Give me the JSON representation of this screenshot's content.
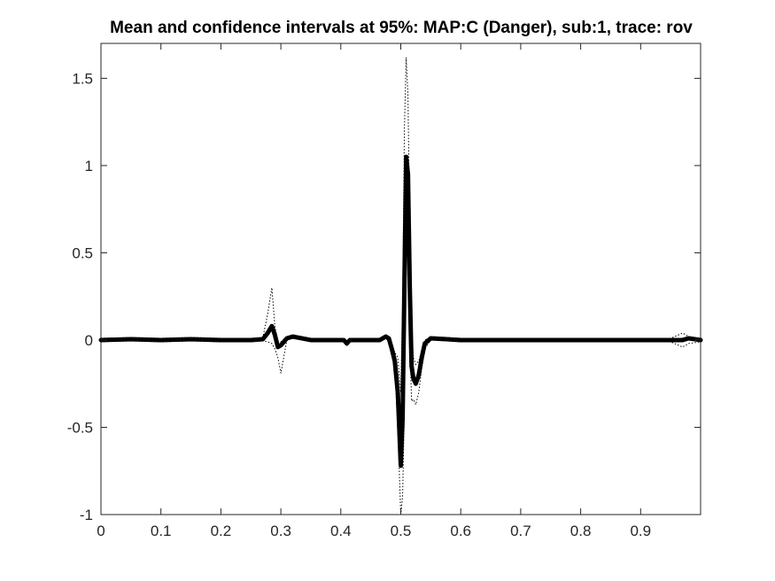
{
  "chart_data": {
    "type": "line",
    "title": "Mean and confidence intervals at 95%: MAP:C (Danger), sub:1, trace: rov",
    "xlabel": "",
    "ylabel": "",
    "xlim": [
      0,
      1
    ],
    "ylim": [
      -1,
      1.7
    ],
    "x_ticks": [
      0,
      0.1,
      0.2,
      0.3,
      0.4,
      0.5,
      0.6,
      0.7,
      0.8,
      0.9
    ],
    "x_tick_labels": [
      "0",
      "0.1",
      "0.2",
      "0.3",
      "0.4",
      "0.5",
      "0.6",
      "0.7",
      "0.8",
      "0.9"
    ],
    "y_ticks": [
      -1,
      -0.5,
      0,
      0.5,
      1,
      1.5
    ],
    "y_tick_labels": [
      "-1",
      "-0.5",
      "0",
      "0.5",
      "1",
      "1.5"
    ],
    "grid": false,
    "legend": "none",
    "colors": {
      "mean": "#000000",
      "ci": "#000000",
      "axes": "#262626"
    },
    "series": [
      {
        "x": [
          0,
          0.05,
          0.1,
          0.15,
          0.2,
          0.25,
          0.27,
          0.278,
          0.285,
          0.29,
          0.295,
          0.3,
          0.31,
          0.32,
          0.35,
          0.38,
          0.405,
          0.41,
          0.415,
          0.44,
          0.465,
          0.475,
          0.48,
          0.485,
          0.49,
          0.495,
          0.5,
          0.503,
          0.506,
          0.509,
          0.512,
          0.515,
          0.518,
          0.521,
          0.525,
          0.53,
          0.535,
          0.54,
          0.55,
          0.6,
          0.7,
          0.8,
          0.9,
          0.95,
          0.97,
          0.98,
          1.0
        ],
        "values": [
          0,
          0.005,
          0,
          0.005,
          0,
          0,
          0.005,
          0.04,
          0.08,
          0.03,
          -0.04,
          -0.03,
          0.01,
          0.02,
          0,
          0,
          0,
          -0.02,
          0,
          0,
          0,
          0.02,
          0.01,
          -0.05,
          -0.12,
          -0.3,
          -0.72,
          -0.45,
          0.3,
          1.05,
          0.95,
          0.3,
          -0.15,
          -0.22,
          -0.25,
          -0.2,
          -0.1,
          -0.02,
          0.01,
          0,
          0,
          0,
          0,
          0,
          0,
          0.01,
          0
        ]
      },
      {
        "x": [
          0,
          0.05,
          0.1,
          0.15,
          0.2,
          0.25,
          0.27,
          0.278,
          0.285,
          0.29,
          0.295,
          0.3,
          0.31,
          0.32,
          0.35,
          0.38,
          0.405,
          0.41,
          0.415,
          0.44,
          0.465,
          0.475,
          0.48,
          0.485,
          0.49,
          0.495,
          0.5,
          0.503,
          0.506,
          0.509,
          0.512,
          0.515,
          0.518,
          0.521,
          0.525,
          0.53,
          0.535,
          0.54,
          0.55,
          0.6,
          0.7,
          0.8,
          0.9,
          0.95,
          0.97,
          0.98,
          1.0
        ],
        "values": [
          0.01,
          0.015,
          0.01,
          0.015,
          0.01,
          0.01,
          0.015,
          0.15,
          0.3,
          0.08,
          -0.01,
          -0.01,
          0.02,
          0.03,
          0.01,
          0.01,
          0.01,
          -0.01,
          0.01,
          0.01,
          0.01,
          0.03,
          0.02,
          -0.02,
          -0.07,
          -0.1,
          -0.3,
          0.2,
          1.2,
          1.62,
          1.4,
          0.6,
          0.05,
          -0.1,
          -0.14,
          -0.12,
          -0.06,
          0.0,
          0.02,
          0.01,
          0.01,
          0.01,
          0.01,
          0.01,
          0.04,
          0.02,
          0.01
        ]
      },
      {
        "x": [
          0,
          0.05,
          0.1,
          0.15,
          0.2,
          0.25,
          0.27,
          0.278,
          0.285,
          0.29,
          0.295,
          0.3,
          0.31,
          0.32,
          0.35,
          0.38,
          0.405,
          0.41,
          0.415,
          0.44,
          0.465,
          0.475,
          0.48,
          0.485,
          0.49,
          0.495,
          0.5,
          0.503,
          0.506,
          0.509,
          0.512,
          0.515,
          0.518,
          0.521,
          0.525,
          0.53,
          0.535,
          0.54,
          0.55,
          0.6,
          0.7,
          0.8,
          0.9,
          0.95,
          0.97,
          0.98,
          1.0
        ],
        "values": [
          -0.01,
          -0.005,
          -0.01,
          -0.005,
          -0.01,
          -0.01,
          -0.005,
          -0.01,
          -0.02,
          -0.05,
          -0.1,
          -0.19,
          0.0,
          0.01,
          -0.01,
          -0.01,
          -0.01,
          -0.03,
          -0.01,
          -0.01,
          -0.01,
          0.01,
          -0.01,
          -0.09,
          -0.17,
          -0.5,
          -1.0,
          -0.9,
          -0.4,
          0.6,
          0.55,
          0.0,
          -0.35,
          -0.34,
          -0.37,
          -0.3,
          -0.16,
          -0.05,
          0.0,
          -0.01,
          -0.01,
          -0.01,
          -0.01,
          -0.01,
          -0.04,
          -0.02,
          -0.01
        ]
      }
    ]
  }
}
